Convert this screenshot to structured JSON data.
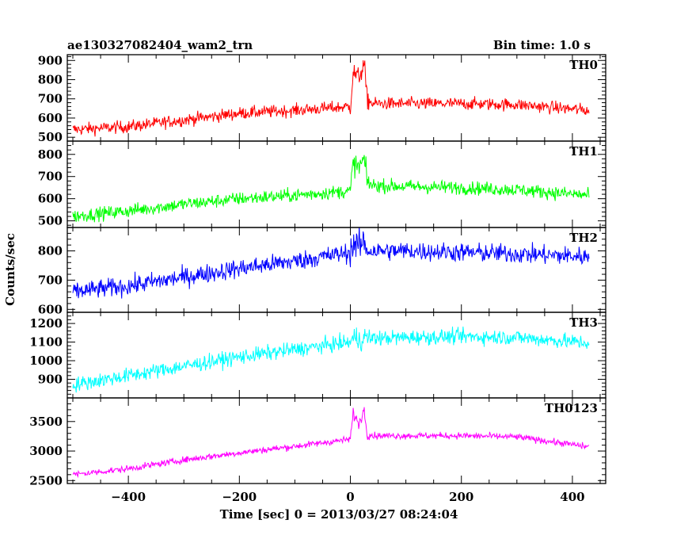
{
  "chart_data": {
    "type": "line",
    "title": "ae130327082404_wam2_trn",
    "subtitle": "Bin time: 1.0 s",
    "xlabel": "Time [sec] 0 = 2013/03/27 08:24:04",
    "ylabel": "Counts/sec",
    "xlim": [
      -510,
      460
    ],
    "xticks": [
      -400,
      -200,
      0,
      200,
      400
    ],
    "x_range_data": [
      -500,
      430
    ],
    "legend": "per-panel label, top-right",
    "grid": false,
    "panels": [
      {
        "name": "TH0",
        "color": "#ff0000",
        "ylim": [
          480,
          930
        ],
        "yticks": [
          500,
          600,
          700,
          800,
          900
        ],
        "trend_x": [
          -500,
          -400,
          -300,
          -200,
          -100,
          0,
          5,
          15,
          25,
          30,
          40,
          100,
          200,
          300,
          430
        ],
        "trend_y": [
          540,
          555,
          590,
          625,
          640,
          660,
          840,
          810,
          880,
          700,
          675,
          675,
          675,
          670,
          640
        ],
        "noise": 32
      },
      {
        "name": "TH1",
        "color": "#00ff00",
        "ylim": [
          470,
          860
        ],
        "yticks": [
          500,
          600,
          700,
          800
        ],
        "trend_x": [
          -500,
          -400,
          -300,
          -200,
          -100,
          0,
          5,
          15,
          25,
          30,
          40,
          100,
          200,
          300,
          430
        ],
        "trend_y": [
          520,
          545,
          575,
          600,
          615,
          635,
          760,
          740,
          780,
          680,
          660,
          655,
          650,
          640,
          615
        ],
        "noise": 30
      },
      {
        "name": "TH2",
        "color": "#0000ff",
        "ylim": [
          590,
          880
        ],
        "yticks": [
          600,
          700,
          800
        ],
        "trend_x": [
          -500,
          -400,
          -300,
          -200,
          -100,
          0,
          5,
          15,
          25,
          30,
          40,
          100,
          200,
          300,
          430
        ],
        "trend_y": [
          660,
          680,
          710,
          740,
          765,
          795,
          825,
          815,
          830,
          805,
          800,
          800,
          795,
          790,
          780
        ],
        "noise": 32
      },
      {
        "name": "TH3",
        "color": "#00ffff",
        "ylim": [
          800,
          1260
        ],
        "yticks": [
          900,
          1000,
          1100,
          1200
        ],
        "trend_x": [
          -500,
          -400,
          -300,
          -200,
          -100,
          0,
          5,
          15,
          25,
          30,
          40,
          100,
          200,
          300,
          430
        ],
        "trend_y": [
          870,
          920,
          970,
          1020,
          1060,
          1100,
          1120,
          1115,
          1125,
          1120,
          1120,
          1125,
          1130,
          1125,
          1095
        ],
        "noise": 40
      },
      {
        "name": "TH0123",
        "color": "#ff00ff",
        "ylim": [
          2450,
          3900
        ],
        "yticks": [
          2500,
          3000,
          3500
        ],
        "trend_x": [
          -500,
          -400,
          -300,
          -200,
          -100,
          0,
          5,
          15,
          25,
          30,
          40,
          100,
          200,
          300,
          430
        ],
        "trend_y": [
          2600,
          2700,
          2850,
          2970,
          3080,
          3200,
          3650,
          3450,
          3700,
          3300,
          3260,
          3260,
          3260,
          3240,
          3070
        ],
        "noise": 55
      }
    ]
  }
}
